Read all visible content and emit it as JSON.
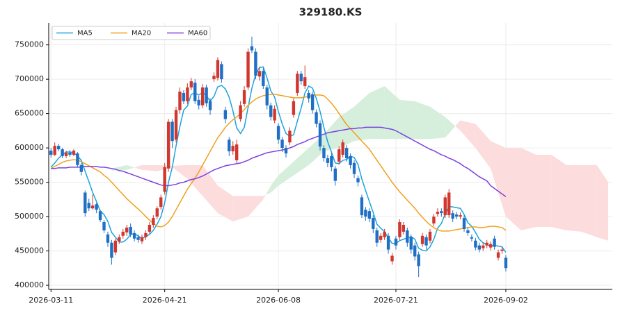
{
  "chart_data": {
    "type": "candlestick",
    "title": "329180.KS",
    "up_color": "#d0372f",
    "down_color": "#1f6fc5",
    "open": [
      596000,
      590000,
      603000,
      598000,
      588000,
      593000,
      590000,
      592000,
      575000,
      535000,
      520000,
      512000,
      518000,
      508000,
      492000,
      474000,
      462000,
      448000,
      464000,
      472000,
      477000,
      485000,
      476000,
      470000,
      464000,
      470000,
      478000,
      488000,
      500000,
      514000,
      536000,
      570000,
      638000,
      612000,
      655000,
      680000,
      668000,
      688000,
      695000,
      670000,
      662000,
      688000,
      668000,
      700000,
      702000,
      722000,
      655000,
      612000,
      595000,
      582000,
      642000,
      664000,
      688000,
      748000,
      740000,
      704000,
      712000,
      688000,
      662000,
      640000,
      632000,
      612000,
      600000,
      608000,
      648000,
      680000,
      708000,
      690000,
      680000,
      678000,
      652000,
      636000,
      600000,
      585000,
      588000,
      570000,
      580000,
      590000,
      600000,
      588000,
      578000,
      556000,
      528000,
      510000,
      508000,
      498000,
      480000,
      466000,
      470000,
      472000,
      435000,
      468000,
      470000,
      478000,
      480000,
      470000,
      458000,
      445000,
      460000,
      470000,
      465000,
      490000,
      504000,
      508000,
      502000,
      502000,
      505000,
      503000,
      500000,
      498000,
      480000,
      470000,
      465000,
      458000,
      454000,
      458000,
      455000,
      468000,
      440000,
      450000,
      440000
    ],
    "high": [
      600000,
      608000,
      606000,
      600000,
      596000,
      597000,
      598000,
      594000,
      578000,
      538000,
      526000,
      532000,
      520000,
      510000,
      495000,
      478000,
      466000,
      468000,
      474000,
      482000,
      488000,
      490000,
      480000,
      474000,
      474000,
      480000,
      492000,
      502000,
      515000,
      532000,
      578000,
      642000,
      642000,
      660000,
      688000,
      684000,
      694000,
      702000,
      700000,
      676000,
      693000,
      692000,
      672000,
      710000,
      732000,
      726000,
      660000,
      616000,
      610000,
      612000,
      668000,
      690000,
      745000,
      762000,
      745000,
      718000,
      716000,
      692000,
      666000,
      662000,
      636000,
      616000,
      604000,
      630000,
      672000,
      712000,
      712000,
      720000,
      684000,
      682000,
      656000,
      640000,
      604000,
      590000,
      592000,
      574000,
      602000,
      612000,
      604000,
      592000,
      582000,
      560000,
      532000,
      514000,
      512000,
      502000,
      484000,
      476000,
      482000,
      476000,
      447000,
      472000,
      496000,
      492000,
      484000,
      474000,
      462000,
      449000,
      476000,
      474000,
      482000,
      504000,
      512000,
      512000,
      532000,
      540000,
      509000,
      507000,
      506000,
      502000,
      484000,
      474000,
      469000,
      462000,
      462000,
      466000,
      464000,
      472000,
      452000,
      456000,
      444000
    ],
    "low": [
      586000,
      588000,
      595000,
      585000,
      585000,
      587000,
      588000,
      572000,
      560000,
      500000,
      508000,
      510000,
      505000,
      492000,
      476000,
      456000,
      430000,
      444000,
      460000,
      468000,
      472000,
      470000,
      464000,
      462000,
      460000,
      466000,
      475000,
      484000,
      496000,
      510000,
      532000,
      565000,
      600000,
      608000,
      650000,
      664000,
      664000,
      684000,
      664000,
      656000,
      658000,
      660000,
      648000,
      696000,
      698000,
      695000,
      636000,
      588000,
      590000,
      578000,
      638000,
      660000,
      684000,
      738000,
      700000,
      698000,
      686000,
      656000,
      640000,
      636000,
      606000,
      594000,
      586000,
      604000,
      644000,
      676000,
      692000,
      686000,
      666000,
      650000,
      630000,
      596000,
      580000,
      572000,
      566000,
      545000,
      576000,
      586000,
      580000,
      570000,
      556000,
      544000,
      498000,
      494000,
      492000,
      476000,
      456000,
      462000,
      466000,
      446000,
      430000,
      452000,
      466000,
      474000,
      456000,
      446000,
      436000,
      412000,
      456000,
      452000,
      461000,
      486000,
      500000,
      500000,
      498000,
      498000,
      492000,
      496000,
      496000,
      478000,
      472000,
      464000,
      451000,
      448000,
      450000,
      454000,
      451000,
      452000,
      436000,
      446000,
      420000
    ],
    "close": [
      590000,
      603000,
      598000,
      588000,
      593000,
      590000,
      596000,
      575000,
      565000,
      505000,
      512000,
      516000,
      510000,
      495000,
      480000,
      462000,
      440000,
      465000,
      470000,
      478000,
      484000,
      474000,
      468000,
      466000,
      470000,
      476000,
      488000,
      498000,
      512000,
      528000,
      572000,
      638000,
      610000,
      655000,
      682000,
      668000,
      688000,
      697000,
      668000,
      662000,
      688000,
      665000,
      655000,
      705000,
      728000,
      700000,
      642000,
      595000,
      603000,
      605000,
      662000,
      684000,
      740000,
      742000,
      705000,
      712000,
      690000,
      662000,
      645000,
      657000,
      612000,
      600000,
      592000,
      625000,
      668000,
      708000,
      697000,
      703000,
      672000,
      655000,
      635000,
      602000,
      585000,
      578000,
      572000,
      552000,
      598000,
      608000,
      585000,
      575000,
      562000,
      550000,
      502000,
      500000,
      497000,
      482000,
      462000,
      472000,
      478000,
      452000,
      443000,
      458000,
      492000,
      488000,
      462000,
      452000,
      442000,
      428000,
      472000,
      458000,
      478000,
      500000,
      507000,
      505000,
      528000,
      535000,
      497000,
      500000,
      502000,
      482000,
      476000,
      468000,
      455000,
      452000,
      458000,
      462000,
      460000,
      456000,
      448000,
      452000,
      425000
    ],
    "xlim": [
      -0.6,
      148.1
    ],
    "xticks": [
      {
        "value": 0,
        "label": "2026-03-11"
      },
      {
        "value": 30,
        "label": "2026-04-21"
      },
      {
        "value": 60,
        "label": "2026-06-08"
      },
      {
        "value": 91,
        "label": "2026-07-21"
      },
      {
        "value": 120,
        "label": "2026-09-02"
      }
    ],
    "ylim": [
      394000,
      782000
    ],
    "yticks": [
      400000,
      450000,
      500000,
      550000,
      600000,
      650000,
      700000,
      750000
    ],
    "grid": true,
    "legend": "upper left",
    "series": [
      {
        "name": "MA5",
        "color": "#1aa3df",
        "values": [
          572000,
          578000,
          585000,
          590000,
          594000,
          594000,
          593000,
          588000,
          582000,
          566000,
          551000,
          535000,
          522000,
          508000,
          503000,
          493000,
          477000,
          470000,
          463000,
          463000,
          467000,
          474000,
          475000,
          472000,
          468000,
          471000,
          474000,
          480000,
          489000,
          500000,
          520000,
          550000,
          572000,
          603000,
          631000,
          655000,
          661000,
          678000,
          680000,
          677000,
          681000,
          676000,
          668000,
          675000,
          689000,
          691000,
          686000,
          674000,
          654000,
          629000,
          621000,
          630000,
          659000,
          687000,
          707000,
          717000,
          718000,
          702000,
          683000,
          674000,
          653000,
          635000,
          621000,
          617000,
          619000,
          639000,
          658000,
          680000,
          690000,
          687000,
          672000,
          653000,
          630000,
          609000,
          594000,
          578000,
          577000,
          582000,
          583000,
          588000,
          586000,
          576000,
          555000,
          538000,
          522000,
          506000,
          489000,
          483000,
          478000,
          469000,
          461000,
          461000,
          465000,
          467000,
          469000,
          471000,
          467000,
          454000,
          451000,
          450000,
          456000,
          467000,
          483000,
          490000,
          504000,
          515000,
          514000,
          513000,
          512000,
          503000,
          491000,
          486000,
          477000,
          467000,
          462000,
          459000,
          457000,
          458000,
          457000,
          456000,
          448000
        ]
      },
      {
        "name": "MA20",
        "color": "#f0a01e",
        "values": [
          570000,
          573000,
          576000,
          579000,
          581000,
          582000,
          583000,
          582000,
          580000,
          577000,
          574000,
          571000,
          568000,
          565000,
          560000,
          556000,
          550000,
          544000,
          538000,
          532000,
          526000,
          521000,
          516000,
          511000,
          506000,
          500000,
          495000,
          490000,
          486000,
          485000,
          487000,
          492000,
          500000,
          510000,
          520000,
          530000,
          540000,
          548000,
          556000,
          565000,
          575000,
          585000,
          595000,
          605000,
          615000,
          622000,
          630000,
          636000,
          641000,
          645000,
          650000,
          656000,
          662000,
          667000,
          671000,
          674000,
          676000,
          677000,
          678000,
          678000,
          677000,
          676000,
          675000,
          674000,
          673000,
          673000,
          673000,
          674000,
          675000,
          676000,
          677000,
          677000,
          676000,
          671000,
          665000,
          658000,
          650000,
          642000,
          634000,
          628000,
          622000,
          616000,
          610000,
          604000,
          598000,
          590000,
          582000,
          574000,
          566000,
          558000,
          550000,
          543000,
          536000,
          530000,
          524000,
          518000,
          512000,
          505000,
          499000,
          493000,
          488000,
          484000,
          481000,
          479000,
          479000,
          479000,
          480000,
          481000,
          482000,
          483000,
          484000,
          485000,
          485000,
          484000,
          484000,
          485000,
          486000,
          486000,
          485000,
          484000,
          480000
        ]
      },
      {
        "name": "MA60",
        "color": "#7b40e0",
        "values": [
          570000,
          570000,
          571000,
          571000,
          571000,
          572000,
          572000,
          572000,
          572000,
          573000,
          573000,
          573000,
          573000,
          572000,
          572000,
          571000,
          570000,
          569000,
          567000,
          566000,
          564000,
          562000,
          560000,
          558000,
          556000,
          554000,
          552000,
          550000,
          548000,
          546000,
          545000,
          545000,
          546000,
          547000,
          549000,
          550000,
          552000,
          554000,
          555000,
          557000,
          559000,
          562000,
          565000,
          568000,
          570000,
          572000,
          574000,
          575000,
          576000,
          577000,
          578000,
          580000,
          582000,
          585000,
          587000,
          589000,
          591000,
          593000,
          594000,
          595000,
          596000,
          597000,
          598000,
          600000,
          602000,
          605000,
          607000,
          609000,
          612000,
          614000,
          616000,
          618000,
          620000,
          622000,
          623000,
          624000,
          625000,
          626000,
          627000,
          628000,
          628000,
          629000,
          629000,
          630000,
          630000,
          630000,
          630000,
          630000,
          629000,
          628000,
          627000,
          625000,
          622000,
          619000,
          616000,
          613000,
          610000,
          607000,
          604000,
          601000,
          598000,
          596000,
          593000,
          590000,
          588000,
          585000,
          583000,
          580000,
          577000,
          573000,
          570000,
          566000,
          562000,
          558000,
          555000,
          552000,
          545000,
          541000,
          537000,
          533000,
          529000
        ]
      }
    ],
    "cloud": {
      "up_color": "#d6eedc",
      "down_color": "#fcdcdc",
      "x": [
        16,
        20,
        24,
        28,
        32,
        36,
        40,
        44,
        48,
        52,
        56,
        58,
        60,
        64,
        68,
        72,
        76,
        80,
        84,
        88,
        92,
        96,
        100,
        104,
        108,
        112,
        116,
        120,
        124,
        128,
        132,
        136,
        140,
        144,
        147
      ],
      "span_a": [
        570000,
        575000,
        568000,
        566000,
        572000,
        555000,
        530000,
        505000,
        493000,
        500000,
        525000,
        545000,
        560000,
        580000,
        600000,
        620000,
        645000,
        660000,
        680000,
        690000,
        670000,
        668000,
        660000,
        645000,
        625000,
        600000,
        570000,
        500000,
        480000,
        485000,
        485000,
        480000,
        478000,
        470000,
        465000
      ],
      "span_b": [
        567000,
        568000,
        575000,
        575000,
        574000,
        575000,
        575000,
        545000,
        530000,
        530000,
        530000,
        535000,
        545000,
        560000,
        575000,
        595000,
        600000,
        610000,
        613000,
        613000,
        613000,
        613000,
        613000,
        615000,
        640000,
        635000,
        610000,
        600000,
        600000,
        590000,
        590000,
        575000,
        575000,
        575000,
        550000
      ]
    }
  }
}
